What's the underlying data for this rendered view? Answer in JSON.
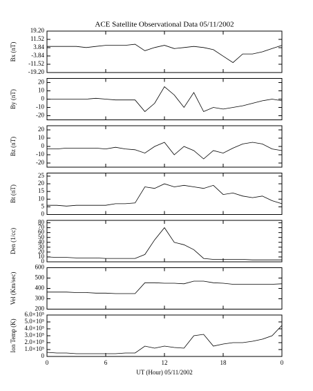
{
  "chart_data": [
    {
      "type": "line",
      "title": "ACE Satellite Observational Data   05/11/2002",
      "ylabel": "Bx (nT)",
      "color": "#000000",
      "x": [
        0,
        1,
        2,
        3,
        4,
        5,
        6,
        7,
        8,
        9,
        10,
        11,
        12,
        13,
        14,
        15,
        16,
        17,
        18,
        19,
        20,
        21,
        22,
        23,
        24
      ],
      "values": [
        5,
        5,
        5,
        5,
        4,
        5,
        6,
        6,
        6,
        7,
        1,
        4,
        6,
        3,
        4,
        5,
        4,
        2,
        -4,
        -10,
        -2,
        -2,
        0,
        3,
        6
      ],
      "xlim": [
        0,
        24
      ],
      "ylim": [
        -19.2,
        19.2
      ],
      "yticks": [
        {
          "value": 19.2,
          "label": "19.20"
        },
        11.52,
        3.84,
        -3.84,
        -11.52,
        {
          "value": -19.2,
          "label": "-19.20"
        }
      ]
    },
    {
      "type": "line",
      "ylabel": "By (nT)",
      "color": "#000000",
      "x": [
        0,
        1,
        2,
        3,
        4,
        5,
        6,
        7,
        8,
        9,
        10,
        11,
        12,
        13,
        14,
        15,
        16,
        17,
        18,
        19,
        20,
        21,
        22,
        23,
        24
      ],
      "values": [
        0,
        0,
        0,
        0,
        0,
        1,
        0,
        -1,
        -1,
        -1,
        -15,
        -5,
        15,
        5,
        -10,
        8,
        -15,
        -10,
        -12,
        -10,
        -8,
        -5,
        -2,
        0,
        -2
      ],
      "xlim": [
        0,
        24
      ],
      "ylim": [
        -25,
        25
      ],
      "yticks": [
        -20,
        -10,
        0,
        10,
        20
      ]
    },
    {
      "type": "line",
      "ylabel": "Bz (nT)",
      "color": "#000000",
      "x": [
        0,
        1,
        2,
        3,
        4,
        5,
        6,
        7,
        8,
        9,
        10,
        11,
        12,
        13,
        14,
        15,
        16,
        17,
        18,
        19,
        20,
        21,
        22,
        23,
        24
      ],
      "values": [
        -3,
        -3,
        -2,
        -2,
        -2,
        -2,
        -3,
        -1,
        -3,
        -4,
        -8,
        0,
        5,
        -10,
        0,
        -5,
        -15,
        -5,
        -8,
        -2,
        3,
        5,
        3,
        -3,
        -5
      ],
      "xlim": [
        0,
        24
      ],
      "ylim": [
        -25,
        25
      ],
      "yticks": [
        -20,
        -10,
        0,
        10,
        20
      ]
    },
    {
      "type": "line",
      "ylabel": "Bt (nT)",
      "color": "#000000",
      "x": [
        0,
        1,
        2,
        3,
        4,
        5,
        6,
        7,
        8,
        9,
        10,
        11,
        12,
        13,
        14,
        15,
        16,
        17,
        18,
        19,
        20,
        21,
        22,
        23,
        24
      ],
      "values": [
        6,
        6,
        5.5,
        6,
        6,
        6,
        6,
        7,
        7,
        7.5,
        18,
        17,
        20,
        18,
        19,
        18,
        17,
        19,
        13,
        14,
        12,
        11,
        12,
        9,
        7
      ],
      "xlim": [
        0,
        24
      ],
      "ylim": [
        0,
        27
      ],
      "yticks": [
        0,
        5,
        10,
        15,
        20,
        25
      ]
    },
    {
      "type": "line",
      "ylabel": "Den (1/cc)",
      "color": "#000000",
      "x": [
        0,
        1,
        2,
        3,
        4,
        5,
        6,
        7,
        8,
        9,
        10,
        11,
        12,
        13,
        14,
        15,
        16,
        17,
        18,
        19,
        20,
        21,
        22,
        23,
        24
      ],
      "values": [
        10,
        9,
        9,
        8,
        8,
        8,
        7,
        7,
        7,
        7,
        15,
        45,
        70,
        40,
        35,
        25,
        7,
        5,
        5,
        5,
        5,
        4,
        4,
        4,
        4
      ],
      "xlim": [
        0,
        24
      ],
      "ylim": [
        0,
        85
      ],
      "yticks": [
        0,
        10,
        20,
        30,
        40,
        50,
        60,
        70,
        80
      ]
    },
    {
      "type": "line",
      "ylabel": "Vel (Km/sec)",
      "color": "#000000",
      "x": [
        0,
        1,
        2,
        3,
        4,
        5,
        6,
        7,
        8,
        9,
        10,
        11,
        12,
        13,
        14,
        15,
        16,
        17,
        18,
        19,
        20,
        21,
        22,
        23,
        24
      ],
      "values": [
        365,
        365,
        365,
        360,
        360,
        355,
        355,
        350,
        350,
        350,
        455,
        455,
        450,
        450,
        445,
        470,
        470,
        455,
        450,
        440,
        440,
        440,
        440,
        440,
        445
      ],
      "xlim": [
        0,
        24
      ],
      "ylim": [
        200,
        600
      ],
      "yticks": [
        200,
        300,
        400,
        500,
        600
      ]
    },
    {
      "type": "line",
      "ylabel": "Ion Temp (K)",
      "xlabel": "UT (Hour)  05/11/2002",
      "color": "#000000",
      "x": [
        0,
        1,
        2,
        3,
        4,
        5,
        6,
        7,
        8,
        9,
        10,
        11,
        12,
        13,
        14,
        15,
        16,
        17,
        18,
        19,
        20,
        21,
        22,
        23,
        24
      ],
      "values": [
        60000,
        50000,
        50000,
        40000,
        40000,
        40000,
        40000,
        40000,
        50000,
        50000,
        150000,
        120000,
        150000,
        130000,
        120000,
        300000,
        320000,
        150000,
        180000,
        200000,
        200000,
        220000,
        250000,
        300000,
        450000
      ],
      "xlim": [
        0,
        24
      ],
      "ylim": [
        0,
        600000
      ],
      "yticks": [
        0,
        {
          "value": 100000,
          "label": "1.0×10⁵"
        },
        {
          "value": 200000,
          "label": "2.0×10⁵"
        },
        {
          "value": 300000,
          "label": "3.0×10⁵"
        },
        {
          "value": 400000,
          "label": "4.0×10⁵"
        },
        {
          "value": 500000,
          "label": "5.0×10⁵"
        },
        {
          "value": 600000,
          "label": "6.0×10⁵"
        }
      ],
      "xticks": [
        0,
        6,
        12,
        18,
        {
          "value": 24,
          "label": "0"
        }
      ]
    }
  ]
}
